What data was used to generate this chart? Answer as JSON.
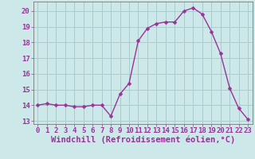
{
  "x": [
    0,
    1,
    2,
    3,
    4,
    5,
    6,
    7,
    8,
    9,
    10,
    11,
    12,
    13,
    14,
    15,
    16,
    17,
    18,
    19,
    20,
    21,
    22,
    23
  ],
  "y": [
    14.0,
    14.1,
    14.0,
    14.0,
    13.9,
    13.9,
    14.0,
    14.0,
    13.3,
    14.7,
    15.4,
    18.1,
    18.9,
    19.2,
    19.3,
    19.3,
    20.0,
    20.2,
    19.8,
    18.7,
    17.3,
    15.1,
    13.8,
    13.1
  ],
  "line_color": "#993399",
  "marker": "D",
  "marker_size": 2.5,
  "bg_color": "#cce8e8",
  "grid_color": "#aacccc",
  "xlabel": "Windchill (Refroidissement éolien,°C)",
  "ylim": [
    12.8,
    20.6
  ],
  "xlim": [
    -0.5,
    23.5
  ],
  "yticks": [
    13,
    14,
    15,
    16,
    17,
    18,
    19,
    20
  ],
  "xticks": [
    0,
    1,
    2,
    3,
    4,
    5,
    6,
    7,
    8,
    9,
    10,
    11,
    12,
    13,
    14,
    15,
    16,
    17,
    18,
    19,
    20,
    21,
    22,
    23
  ],
  "tick_fontsize": 6.5,
  "xlabel_fontsize": 7.5,
  "line_width": 1.0,
  "marker_color": "#993399"
}
